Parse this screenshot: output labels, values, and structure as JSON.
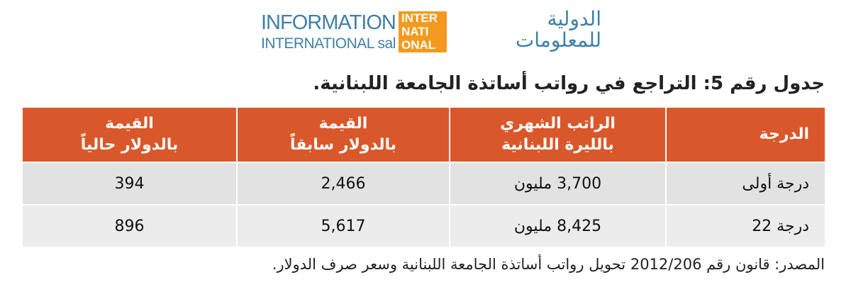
{
  "logo": {
    "english_line_1": "INFORMATION",
    "english_line_2": "INTERNATIONAL sal",
    "mark_lines": [
      "INTER",
      "NATI",
      "ONAL"
    ],
    "arabic_line_1": "الدولية",
    "arabic_line_2": "للمعلومات"
  },
  "title": "جدول رقم 5: التراجع في رواتب أساتذة الجامعة اللبنانية.",
  "table": {
    "header": [
      [
        "الدرجة"
      ],
      [
        "الراتب الشهري",
        "بالليرة اللبنانية"
      ],
      [
        "القيمة",
        "بالدولار سابقاً"
      ],
      [
        "القيمة",
        "بالدولار حالياً"
      ]
    ],
    "rows": [
      [
        "درجة أولى",
        "3,700 مليون",
        "2,466",
        "394"
      ],
      [
        "درجة 22",
        "8,425 مليون",
        "5,617",
        "896"
      ]
    ]
  },
  "source": "المصدر: قانون رقم 2012/206 تحويل رواتب أساتذة الجامعة اللبنانية وسعر صرف الدولار."
}
